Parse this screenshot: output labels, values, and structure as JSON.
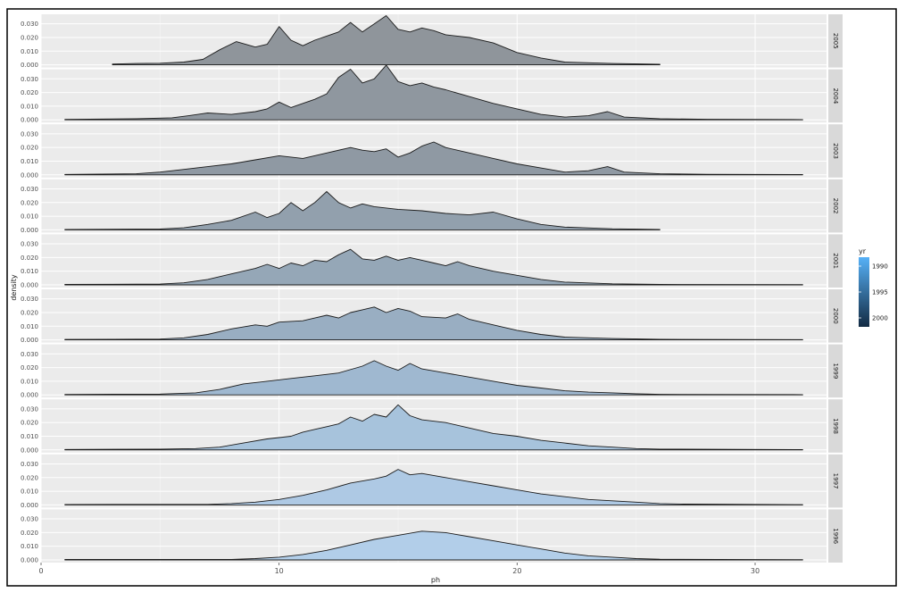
{
  "chart_data": {
    "type": "area",
    "title": "",
    "xlabel": "ph",
    "ylabel": "density",
    "xlim": [
      0,
      33
    ],
    "ylim": [
      0,
      0.035
    ],
    "x_ticks": [
      {
        "value": 0,
        "label": "0"
      },
      {
        "value": 10,
        "label": "10"
      },
      {
        "value": 20,
        "label": "20"
      },
      {
        "value": 30,
        "label": "30"
      }
    ],
    "y_ticks": [
      {
        "value": 0.0,
        "label": "0.000"
      },
      {
        "value": 0.01,
        "label": "0.010"
      },
      {
        "value": 0.02,
        "label": "0.020"
      },
      {
        "value": 0.03,
        "label": "0.030"
      }
    ],
    "grid": true,
    "legend": {
      "title": "yr",
      "position": "right",
      "ticks": [
        "1990",
        "1995",
        "2000"
      ],
      "low_color": "#132b43",
      "high_color": "#56b1f7"
    },
    "panel_colors": [
      "#8f959b",
      "#8f979f",
      "#8f99a3",
      "#92a0ad",
      "#95a7b7",
      "#99aec2",
      "#9fb8d0",
      "#a7c3dc",
      "#aec9e4",
      "#b2cee9"
    ],
    "series": [
      {
        "name": "2005",
        "points": [
          [
            3,
            0.0006
          ],
          [
            4,
            0.001
          ],
          [
            5,
            0.0012
          ],
          [
            6,
            0.002
          ],
          [
            6.8,
            0.004
          ],
          [
            7.5,
            0.011
          ],
          [
            8.2,
            0.017
          ],
          [
            9,
            0.013
          ],
          [
            9.5,
            0.015
          ],
          [
            10,
            0.028
          ],
          [
            10.5,
            0.018
          ],
          [
            11,
            0.014
          ],
          [
            11.5,
            0.018
          ],
          [
            12,
            0.021
          ],
          [
            12.5,
            0.024
          ],
          [
            13,
            0.031
          ],
          [
            13.5,
            0.024
          ],
          [
            14,
            0.03
          ],
          [
            14.5,
            0.036
          ],
          [
            15,
            0.026
          ],
          [
            15.5,
            0.024
          ],
          [
            16,
            0.027
          ],
          [
            16.5,
            0.025
          ],
          [
            17,
            0.022
          ],
          [
            18,
            0.02
          ],
          [
            19,
            0.016
          ],
          [
            20,
            0.009
          ],
          [
            21,
            0.005
          ],
          [
            22,
            0.002
          ],
          [
            24,
            0.001
          ],
          [
            26,
            0.0004
          ]
        ]
      },
      {
        "name": "2004",
        "points": [
          [
            1,
            0.0003
          ],
          [
            4,
            0.0008
          ],
          [
            5.5,
            0.0015
          ],
          [
            6.2,
            0.003
          ],
          [
            7,
            0.005
          ],
          [
            8,
            0.004
          ],
          [
            9,
            0.006
          ],
          [
            9.5,
            0.008
          ],
          [
            10,
            0.013
          ],
          [
            10.5,
            0.009
          ],
          [
            11,
            0.012
          ],
          [
            11.5,
            0.015
          ],
          [
            12,
            0.019
          ],
          [
            12.5,
            0.031
          ],
          [
            13,
            0.037
          ],
          [
            13.5,
            0.027
          ],
          [
            14,
            0.03
          ],
          [
            14.5,
            0.04
          ],
          [
            15,
            0.028
          ],
          [
            15.5,
            0.025
          ],
          [
            16,
            0.027
          ],
          [
            16.5,
            0.024
          ],
          [
            17,
            0.022
          ],
          [
            18,
            0.017
          ],
          [
            19,
            0.012
          ],
          [
            20,
            0.008
          ],
          [
            21,
            0.004
          ],
          [
            22,
            0.002
          ],
          [
            23,
            0.003
          ],
          [
            23.8,
            0.006
          ],
          [
            24.5,
            0.002
          ],
          [
            26,
            0.0008
          ],
          [
            28,
            0.0004
          ],
          [
            32,
            0.0002
          ]
        ]
      },
      {
        "name": "2003",
        "points": [
          [
            1,
            0.0003
          ],
          [
            4,
            0.0008
          ],
          [
            5,
            0.002
          ],
          [
            6,
            0.004
          ],
          [
            7,
            0.006
          ],
          [
            8,
            0.008
          ],
          [
            9,
            0.011
          ],
          [
            10,
            0.014
          ],
          [
            11,
            0.012
          ],
          [
            12,
            0.016
          ],
          [
            13,
            0.02
          ],
          [
            13.5,
            0.018
          ],
          [
            14,
            0.017
          ],
          [
            14.5,
            0.019
          ],
          [
            15,
            0.013
          ],
          [
            15.5,
            0.016
          ],
          [
            16,
            0.021
          ],
          [
            16.5,
            0.024
          ],
          [
            17,
            0.02
          ],
          [
            18,
            0.016
          ],
          [
            19,
            0.012
          ],
          [
            20,
            0.008
          ],
          [
            21,
            0.005
          ],
          [
            22,
            0.002
          ],
          [
            23,
            0.003
          ],
          [
            23.8,
            0.006
          ],
          [
            24.5,
            0.002
          ],
          [
            26,
            0.0008
          ],
          [
            28,
            0.0004
          ],
          [
            32,
            0.0002
          ]
        ]
      },
      {
        "name": "2002",
        "points": [
          [
            1,
            0.0003
          ],
          [
            5,
            0.0006
          ],
          [
            6,
            0.0015
          ],
          [
            7,
            0.004
          ],
          [
            8,
            0.007
          ],
          [
            9,
            0.013
          ],
          [
            9.5,
            0.009
          ],
          [
            10,
            0.012
          ],
          [
            10.5,
            0.02
          ],
          [
            11,
            0.014
          ],
          [
            11.5,
            0.02
          ],
          [
            12,
            0.028
          ],
          [
            12.5,
            0.02
          ],
          [
            13,
            0.016
          ],
          [
            13.5,
            0.019
          ],
          [
            14,
            0.017
          ],
          [
            15,
            0.015
          ],
          [
            16,
            0.014
          ],
          [
            17,
            0.012
          ],
          [
            18,
            0.011
          ],
          [
            19,
            0.013
          ],
          [
            20,
            0.008
          ],
          [
            21,
            0.004
          ],
          [
            22,
            0.002
          ],
          [
            24,
            0.0008
          ],
          [
            26,
            0.0003
          ]
        ]
      },
      {
        "name": "2001",
        "points": [
          [
            1,
            0.0003
          ],
          [
            5,
            0.0006
          ],
          [
            6,
            0.0015
          ],
          [
            7,
            0.004
          ],
          [
            8,
            0.008
          ],
          [
            9,
            0.012
          ],
          [
            9.5,
            0.015
          ],
          [
            10,
            0.012
          ],
          [
            10.5,
            0.016
          ],
          [
            11,
            0.014
          ],
          [
            11.5,
            0.018
          ],
          [
            12,
            0.017
          ],
          [
            12.5,
            0.022
          ],
          [
            13,
            0.026
          ],
          [
            13.5,
            0.019
          ],
          [
            14,
            0.018
          ],
          [
            14.5,
            0.021
          ],
          [
            15,
            0.018
          ],
          [
            15.5,
            0.02
          ],
          [
            16,
            0.018
          ],
          [
            16.5,
            0.016
          ],
          [
            17,
            0.014
          ],
          [
            17.5,
            0.017
          ],
          [
            18,
            0.014
          ],
          [
            19,
            0.01
          ],
          [
            20,
            0.007
          ],
          [
            21,
            0.004
          ],
          [
            22,
            0.002
          ],
          [
            24,
            0.0008
          ],
          [
            26,
            0.0003
          ],
          [
            32,
            0.0002
          ]
        ]
      },
      {
        "name": "2000",
        "points": [
          [
            1,
            0.0003
          ],
          [
            5,
            0.0006
          ],
          [
            6,
            0.0015
          ],
          [
            7,
            0.004
          ],
          [
            8,
            0.008
          ],
          [
            9,
            0.011
          ],
          [
            9.5,
            0.01
          ],
          [
            10,
            0.013
          ],
          [
            11,
            0.014
          ],
          [
            11.5,
            0.016
          ],
          [
            12,
            0.018
          ],
          [
            12.5,
            0.016
          ],
          [
            13,
            0.02
          ],
          [
            13.5,
            0.022
          ],
          [
            14,
            0.024
          ],
          [
            14.5,
            0.02
          ],
          [
            15,
            0.023
          ],
          [
            15.5,
            0.021
          ],
          [
            16,
            0.017
          ],
          [
            17,
            0.016
          ],
          [
            17.5,
            0.019
          ],
          [
            18,
            0.015
          ],
          [
            19,
            0.011
          ],
          [
            20,
            0.007
          ],
          [
            21,
            0.004
          ],
          [
            22,
            0.002
          ],
          [
            24,
            0.001
          ],
          [
            26,
            0.0004
          ],
          [
            32,
            0.0002
          ]
        ]
      },
      {
        "name": "1999",
        "points": [
          [
            1,
            0.0003
          ],
          [
            5,
            0.0006
          ],
          [
            6.5,
            0.0015
          ],
          [
            7.5,
            0.004
          ],
          [
            8.5,
            0.008
          ],
          [
            9.5,
            0.01
          ],
          [
            10.5,
            0.012
          ],
          [
            11.5,
            0.014
          ],
          [
            12.5,
            0.016
          ],
          [
            13.5,
            0.021
          ],
          [
            14,
            0.025
          ],
          [
            14.5,
            0.021
          ],
          [
            15,
            0.018
          ],
          [
            15.5,
            0.023
          ],
          [
            16,
            0.019
          ],
          [
            17,
            0.016
          ],
          [
            18,
            0.013
          ],
          [
            19,
            0.01
          ],
          [
            20,
            0.007
          ],
          [
            21,
            0.005
          ],
          [
            22,
            0.003
          ],
          [
            23,
            0.002
          ],
          [
            24,
            0.0015
          ],
          [
            25,
            0.0008
          ],
          [
            26,
            0.0004
          ],
          [
            32,
            0.0002
          ]
        ]
      },
      {
        "name": "1998",
        "points": [
          [
            1,
            0.0003
          ],
          [
            5,
            0.0006
          ],
          [
            6.5,
            0.001
          ],
          [
            7.5,
            0.002
          ],
          [
            8.5,
            0.005
          ],
          [
            9.5,
            0.008
          ],
          [
            10.5,
            0.01
          ],
          [
            11,
            0.013
          ],
          [
            11.5,
            0.015
          ],
          [
            12,
            0.017
          ],
          [
            12.5,
            0.019
          ],
          [
            13,
            0.024
          ],
          [
            13.5,
            0.021
          ],
          [
            14,
            0.026
          ],
          [
            14.5,
            0.024
          ],
          [
            15,
            0.033
          ],
          [
            15.5,
            0.025
          ],
          [
            16,
            0.022
          ],
          [
            17,
            0.02
          ],
          [
            18,
            0.016
          ],
          [
            19,
            0.012
          ],
          [
            20,
            0.01
          ],
          [
            21,
            0.007
          ],
          [
            22,
            0.005
          ],
          [
            23,
            0.003
          ],
          [
            24,
            0.002
          ],
          [
            25,
            0.001
          ],
          [
            26,
            0.0006
          ],
          [
            32,
            0.0002
          ]
        ]
      },
      {
        "name": "1997",
        "points": [
          [
            1,
            0.0003
          ],
          [
            7,
            0.0004
          ],
          [
            8,
            0.001
          ],
          [
            9,
            0.002
          ],
          [
            10,
            0.004
          ],
          [
            11,
            0.007
          ],
          [
            12,
            0.011
          ],
          [
            13,
            0.016
          ],
          [
            14,
            0.019
          ],
          [
            14.5,
            0.021
          ],
          [
            15,
            0.026
          ],
          [
            15.5,
            0.022
          ],
          [
            16,
            0.023
          ],
          [
            17,
            0.02
          ],
          [
            18,
            0.017
          ],
          [
            19,
            0.014
          ],
          [
            20,
            0.011
          ],
          [
            21,
            0.008
          ],
          [
            22,
            0.006
          ],
          [
            23,
            0.004
          ],
          [
            24,
            0.003
          ],
          [
            25,
            0.002
          ],
          [
            26,
            0.001
          ],
          [
            27,
            0.0006
          ],
          [
            32,
            0.0002
          ]
        ]
      },
      {
        "name": "1996",
        "points": [
          [
            1,
            0.0003
          ],
          [
            8,
            0.0004
          ],
          [
            9,
            0.001
          ],
          [
            10,
            0.002
          ],
          [
            11,
            0.004
          ],
          [
            12,
            0.007
          ],
          [
            13,
            0.011
          ],
          [
            14,
            0.015
          ],
          [
            15,
            0.018
          ],
          [
            16,
            0.021
          ],
          [
            17,
            0.02
          ],
          [
            18,
            0.017
          ],
          [
            19,
            0.014
          ],
          [
            20,
            0.011
          ],
          [
            21,
            0.008
          ],
          [
            22,
            0.005
          ],
          [
            23,
            0.003
          ],
          [
            24,
            0.002
          ],
          [
            25,
            0.001
          ],
          [
            26,
            0.0005
          ],
          [
            32,
            0.0002
          ]
        ]
      }
    ]
  }
}
